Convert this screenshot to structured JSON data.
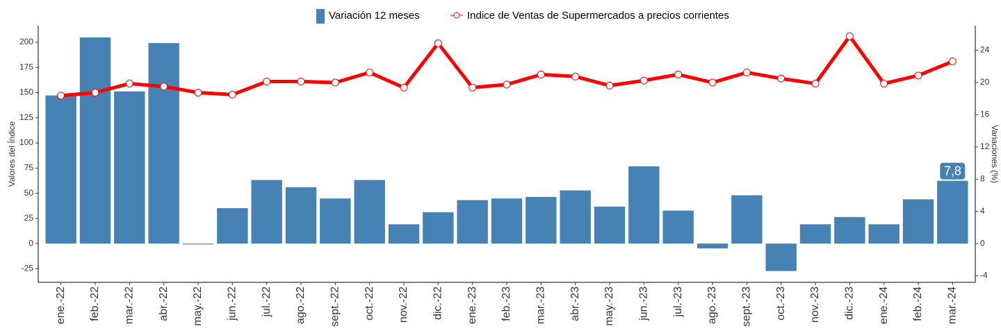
{
  "chart_data": {
    "type": "bar-line",
    "y_label": "Valores del Índice",
    "y2_label": "Variaciones (%)",
    "categories": [
      "ene.-22",
      "feb.-22",
      "mar.-22",
      "abr.-22",
      "may.-22",
      "jun.-22",
      "jul.-22",
      "ago.-22",
      "sept.-22",
      "oct.-22",
      "nov.-22",
      "dic.-22",
      "ene.-23",
      "feb.-23",
      "mar.-23",
      "abr.-23",
      "may.-23",
      "jun.-23",
      "jul.-23",
      "ago.-23",
      "sept.-23",
      "oct.-23",
      "nov.-23",
      "dic.-23",
      "ene.-24",
      "feb.-24",
      "mar.-24"
    ],
    "series": [
      {
        "name": "Variación 12 meses",
        "type": "bar",
        "axis": "y2",
        "color": "#4682b4",
        "values": [
          18.4,
          25.6,
          18.9,
          24.9,
          -0.1,
          4.4,
          7.9,
          7.0,
          5.6,
          7.9,
          2.4,
          3.9,
          5.4,
          5.6,
          5.8,
          6.6,
          4.6,
          9.6,
          4.1,
          -0.6,
          6.0,
          -3.4,
          2.4,
          3.3,
          2.4,
          5.5,
          7.8
        ],
        "value_labels": [
          null,
          null,
          null,
          null,
          null,
          null,
          null,
          null,
          null,
          null,
          null,
          null,
          null,
          null,
          null,
          null,
          null,
          null,
          null,
          null,
          null,
          null,
          null,
          null,
          null,
          null,
          "7,8"
        ]
      },
      {
        "name": "Indice de Ventas de Supermercados a precios corrientes",
        "type": "line",
        "axis": "y",
        "color": "#ff0000",
        "values": [
          147,
          150,
          159,
          156,
          150,
          148,
          161,
          161,
          160,
          170,
          155,
          199,
          155,
          158,
          168,
          166,
          157,
          162,
          168,
          160,
          170,
          164,
          159,
          206,
          159,
          167,
          181
        ]
      }
    ],
    "ylim": [
      -38.5,
      216.5
    ],
    "yticks": [
      -25,
      0,
      25,
      50,
      75,
      100,
      125,
      150,
      175,
      200
    ],
    "y2lim": [
      -4.8125,
      27.0625
    ],
    "y2ticks": [
      -4,
      0,
      4,
      8,
      12,
      16,
      20,
      24
    ]
  }
}
